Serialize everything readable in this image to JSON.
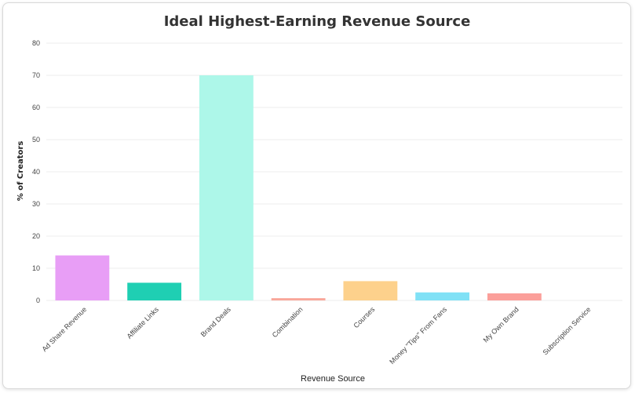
{
  "chart_data": {
    "type": "bar",
    "title": "Ideal Highest-Earning Revenue Source",
    "xlabel": "Revenue Source",
    "ylabel": "% of Creators",
    "ylim": [
      0,
      80
    ],
    "yticks": [
      0,
      10,
      20,
      30,
      40,
      50,
      60,
      70,
      80
    ],
    "grid": true,
    "categories": [
      "Ad Share Revenue",
      "Affiliate Links",
      "Brand Deals",
      "Combination",
      "Courses",
      "Money \"Tips\" From Fans",
      "My Own Brand",
      "Subscription Service"
    ],
    "values": [
      14,
      5.5,
      70,
      0.7,
      6,
      2.5,
      2.2,
      0
    ],
    "colors": [
      "#e89ef6",
      "#1fcfb3",
      "#adf7e9",
      "#f9a79a",
      "#fdd18c",
      "#80e1f6",
      "#fb9f9a",
      "#cccccc"
    ]
  }
}
